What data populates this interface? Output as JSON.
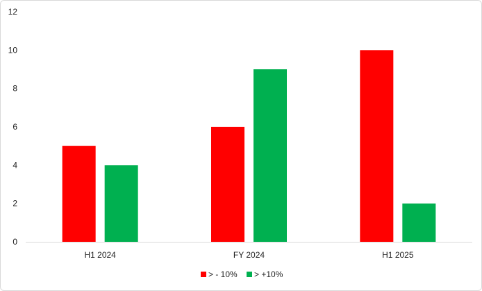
{
  "chart_data": {
    "type": "bar",
    "categories": [
      "H1 2024",
      "FY 2024",
      "H1 2025"
    ],
    "series": [
      {
        "name": "> - 10%",
        "color": "#ff0000",
        "values": [
          5,
          6,
          10
        ]
      },
      {
        "name": "> +10%",
        "color": "#00b050",
        "values": [
          4,
          9,
          2
        ]
      }
    ],
    "yticks": [
      "0",
      "2",
      "4",
      "6",
      "8",
      "10",
      "12"
    ],
    "ylim": [
      0,
      12
    ],
    "grid": false,
    "legend_position": "bottom"
  }
}
